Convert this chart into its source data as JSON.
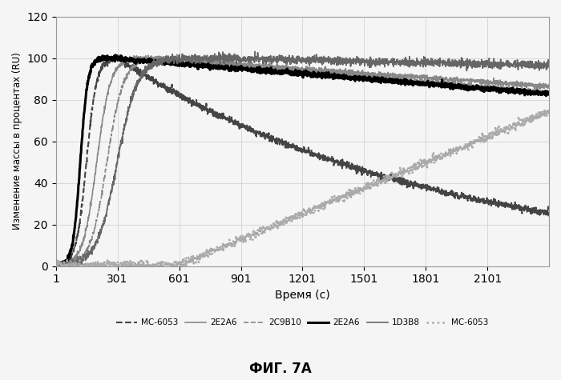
{
  "title": "ФИГ. 7А",
  "xlabel": "Время (с)",
  "ylabel": "Изменение массы в процентах (RU)",
  "xlim": [
    1,
    2400
  ],
  "ylim": [
    0,
    120
  ],
  "yticks": [
    0,
    20,
    40,
    60,
    80,
    100,
    120
  ],
  "xticks": [
    1,
    301,
    601,
    901,
    1201,
    1501,
    1801,
    2101
  ],
  "legend_entries": [
    {
      "label": "МС-6053",
      "color": "#555555",
      "linestyle": "--",
      "linewidth": 1.5
    },
    {
      "label": "2E2A6",
      "color": "#aaaaaa",
      "linestyle": "-",
      "linewidth": 1.0
    },
    {
      "label": "2C9B10",
      "color": "#888888",
      "linestyle": "--",
      "linewidth": 1.0
    },
    {
      "label": "2E2A6",
      "color": "#000000",
      "linestyle": "-",
      "linewidth": 2.0
    },
    {
      "label": "1D3B8",
      "color": "#888888",
      "linestyle": "-",
      "linewidth": 1.0
    },
    {
      "label": "МС-6053",
      "color": "#aaaaaa",
      "linestyle": ":",
      "linewidth": 1.5
    }
  ],
  "background_color": "#f0f0f0"
}
